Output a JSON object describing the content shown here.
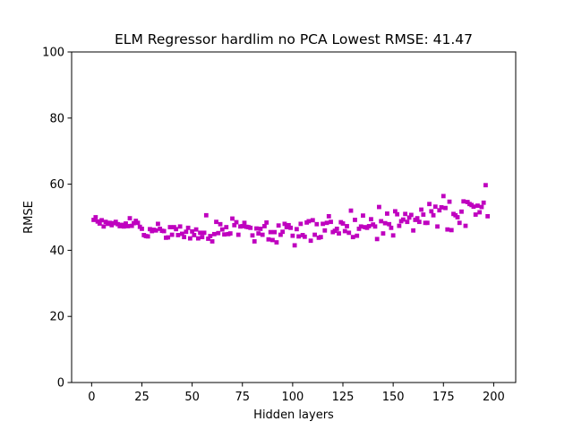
{
  "chart_data": {
    "type": "scatter",
    "title": "ELM Regressor hardlim no PCA Lowest RMSE: 41.47",
    "xlabel": "Hidden layers",
    "ylabel": "RMSE",
    "xlim": [
      -9.95,
      210.95
    ],
    "ylim": [
      0,
      100
    ],
    "xticks": [
      0,
      25,
      50,
      75,
      100,
      125,
      150,
      175,
      200
    ],
    "yticks": [
      0,
      20,
      40,
      60,
      80,
      100
    ],
    "marker_color": "#bf00bf",
    "marker": "square",
    "grid": false,
    "x_start": 1,
    "x_step": 1,
    "y": [
      49.2,
      50.0,
      48.7,
      48.1,
      49.1,
      47.2,
      48.6,
      48.0,
      48.3,
      47.6,
      48.2,
      48.6,
      47.9,
      47.3,
      47.7,
      47.2,
      48.1,
      47.3,
      49.7,
      47.4,
      48.2,
      48.9,
      48.3,
      47.1,
      46.5,
      44.6,
      44.3,
      44.2,
      46.4,
      45.8,
      46.2,
      46.0,
      48.0,
      46.5,
      45.9,
      45.8,
      43.8,
      43.9,
      47.0,
      44.7,
      47.0,
      46.4,
      44.6,
      47.2,
      45.0,
      44.0,
      45.6,
      46.8,
      43.6,
      45.7,
      44.6,
      46.3,
      43.6,
      45.3,
      44.0,
      45.3,
      50.6,
      43.5,
      44.3,
      42.7,
      44.9,
      48.6,
      45.2,
      47.9,
      46.3,
      44.8,
      47.0,
      44.9,
      45.1,
      49.6,
      47.6,
      48.5,
      44.7,
      47.2,
      47.3,
      48.3,
      47.1,
      47.0,
      46.8,
      44.5,
      42.7,
      46.6,
      45.1,
      46.5,
      44.7,
      47.3,
      48.4,
      43.3,
      45.5,
      43.1,
      45.5,
      42.4,
      47.5,
      44.7,
      45.6,
      48.0,
      47.0,
      47.6,
      46.8,
      44.4,
      41.5,
      46.4,
      44.2,
      48.0,
      44.6,
      44.1,
      48.4,
      48.8,
      42.9,
      49.1,
      44.7,
      47.9,
      43.8,
      44.0,
      48.0,
      46.0,
      48.3,
      50.3,
      48.6,
      45.5,
      45.9,
      46.5,
      45.1,
      48.5,
      48.1,
      45.8,
      47.3,
      45.3,
      52.0,
      44.0,
      49.2,
      44.4,
      46.5,
      47.2,
      50.5,
      47.0,
      46.8,
      47.3,
      49.4,
      47.8,
      47.2,
      43.4,
      53.1,
      48.8,
      45.1,
      48.2,
      51.1,
      47.9,
      46.8,
      44.5,
      51.8,
      50.9,
      47.4,
      48.8,
      49.3,
      51.0,
      48.6,
      49.9,
      50.7,
      46.0,
      49.2,
      49.7,
      48.6,
      52.3,
      50.8,
      48.3,
      48.3,
      54.0,
      51.8,
      50.6,
      53.2,
      47.2,
      52.1,
      53.0,
      56.4,
      52.8,
      46.3,
      54.7,
      46.1,
      51.0,
      50.6,
      50.0,
      48.3,
      51.7,
      54.8,
      47.4,
      54.6,
      54.0,
      53.7,
      53.2,
      50.8,
      53.5,
      51.5,
      53.1,
      54.4,
      59.7,
      50.3
    ]
  }
}
